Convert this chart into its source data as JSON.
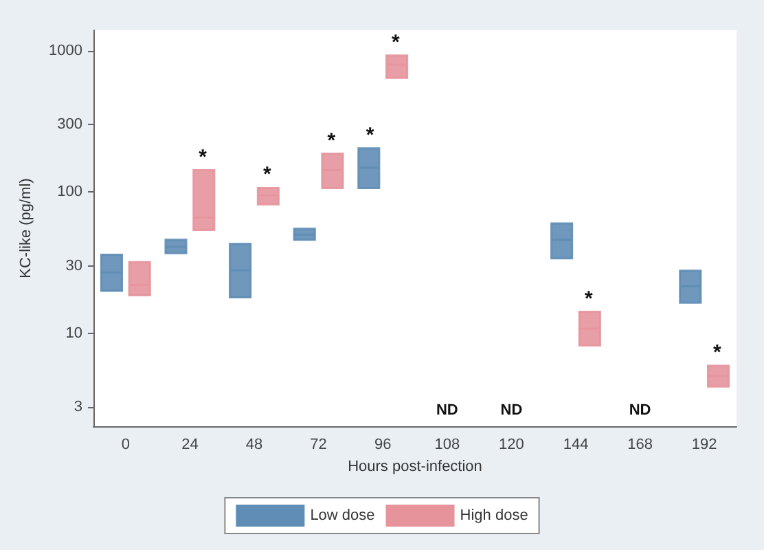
{
  "chart_data": {
    "type": "box",
    "xlabel": "Hours post-infection",
    "ylabel": "KC-like (pg/ml)",
    "categories": [
      "0",
      "24",
      "48",
      "72",
      "96",
      "108",
      "120",
      "144",
      "168",
      "192"
    ],
    "series": [
      {
        "name": "Low dose",
        "color": "#5f8db5",
        "boxes": [
          {
            "low": 20,
            "q1": 20,
            "median": 27,
            "q3": 36,
            "high": 36
          },
          {
            "low": 37,
            "q1": 37,
            "median": 41,
            "q3": 46,
            "high": 46
          },
          {
            "low": 18,
            "q1": 18,
            "median": 28,
            "q3": 43,
            "high": 43
          },
          {
            "low": 46,
            "q1": 46,
            "median": 50,
            "q3": 55,
            "high": 55
          },
          {
            "low": 107,
            "q1": 107,
            "median": 149,
            "q3": 204,
            "high": 204
          },
          null,
          null,
          {
            "low": 34,
            "q1": 34,
            "median": 46,
            "q3": 60,
            "high": 60
          },
          null,
          {
            "low": 16.5,
            "q1": 16.5,
            "median": 21.6,
            "q3": 27.8,
            "high": 27.8
          }
        ]
      },
      {
        "name": "High dose",
        "color": "#e6939c",
        "boxes": [
          {
            "low": 18.6,
            "q1": 18.6,
            "median": 22,
            "q3": 32,
            "high": 32
          },
          {
            "low": 54,
            "q1": 54,
            "median": 66,
            "q3": 143,
            "high": 143
          },
          {
            "low": 82,
            "q1": 82,
            "median": 95,
            "q3": 107,
            "high": 107
          },
          {
            "low": 107,
            "q1": 107,
            "median": 143,
            "q3": 187,
            "high": 187
          },
          {
            "low": 645,
            "q1": 645,
            "median": 798,
            "q3": 927,
            "high": 927
          },
          null,
          null,
          {
            "low": 8.2,
            "q1": 8.2,
            "median": 10.8,
            "q3": 14.2,
            "high": 14.2
          },
          null,
          {
            "low": 4.2,
            "q1": 4.2,
            "median": 5,
            "q3": 5.9,
            "high": 5.9
          }
        ]
      }
    ],
    "annotations": [
      {
        "text": "*",
        "x": "24",
        "y": 143
      },
      {
        "text": "*",
        "x": "48",
        "y": 107
      },
      {
        "text": "*",
        "x": "72",
        "y": 187
      },
      {
        "text": "*",
        "x": "96",
        "y": 204
      },
      {
        "text": "*",
        "x": "96",
        "y": 927
      },
      {
        "text": "*",
        "x": "144",
        "y": 14.2
      },
      {
        "text": "*",
        "x": "192",
        "y": 5.9
      },
      "ND",
      "ND",
      "ND"
    ],
    "log": "y",
    "ylim": [
      2.2,
      1400
    ],
    "yticks": [
      3,
      10,
      30,
      100,
      300,
      1000
    ],
    "grid": false,
    "legend": "bottom"
  }
}
